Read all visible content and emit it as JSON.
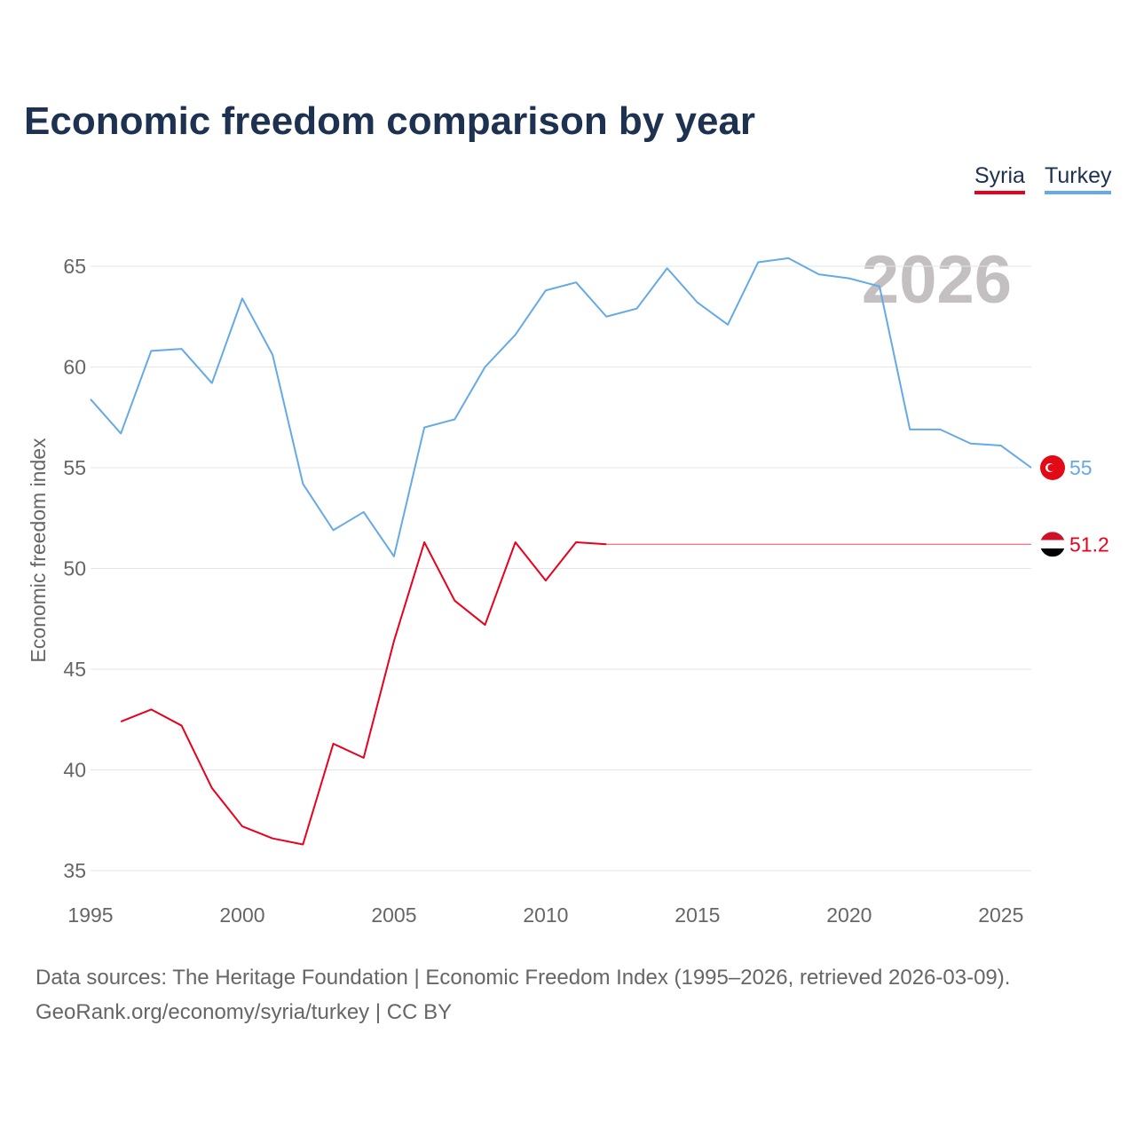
{
  "chart_data": {
    "type": "line",
    "title": "Economic freedom comparison by year",
    "xlabel": "",
    "ylabel": "Economic freedom index",
    "xlim": [
      1995,
      2026
    ],
    "ylim": [
      35,
      65
    ],
    "x_ticks": [
      1995,
      2000,
      2005,
      2010,
      2015,
      2020,
      2025
    ],
    "y_ticks": [
      35,
      40,
      45,
      50,
      55,
      60,
      65
    ],
    "grid": true,
    "legend_position": "top-right",
    "year_label": "2026",
    "series": [
      {
        "name": "Syria",
        "color": "#e8001c",
        "end_label": "51.2",
        "x": [
          1996,
          1997,
          1998,
          1999,
          2000,
          2001,
          2002,
          2003,
          2004,
          2005,
          2006,
          2007,
          2008,
          2009,
          2010,
          2011,
          2012
        ],
        "values": [
          42.4,
          43.0,
          42.2,
          39.1,
          37.2,
          36.6,
          36.3,
          41.3,
          40.6,
          46.4,
          51.3,
          48.4,
          47.2,
          51.3,
          49.4,
          51.3,
          51.2
        ],
        "carried_forward_to": 2026
      },
      {
        "name": "Turkey",
        "color": "#65a9e8",
        "end_label": "55",
        "x": [
          1995,
          1996,
          1997,
          1998,
          1999,
          2000,
          2001,
          2002,
          2003,
          2004,
          2005,
          2006,
          2007,
          2008,
          2009,
          2010,
          2011,
          2012,
          2013,
          2014,
          2015,
          2016,
          2017,
          2018,
          2019,
          2020,
          2021,
          2022,
          2023,
          2024,
          2025,
          2026
        ],
        "values": [
          58.4,
          56.7,
          60.8,
          60.9,
          59.2,
          63.4,
          60.6,
          54.2,
          51.9,
          52.8,
          50.6,
          57.0,
          57.4,
          60.0,
          61.6,
          63.8,
          64.2,
          62.5,
          62.9,
          64.9,
          63.2,
          62.1,
          65.2,
          65.4,
          64.6,
          64.4,
          64.0,
          56.9,
          56.9,
          56.2,
          56.1,
          55.0
        ]
      }
    ]
  },
  "source_line1": "Data sources: The Heritage Foundation | Economic Freedom Index (1995–2026, retrieved 2026-03-09).",
  "source_line2": "GeoRank.org/economy/syria/turkey | CC BY"
}
